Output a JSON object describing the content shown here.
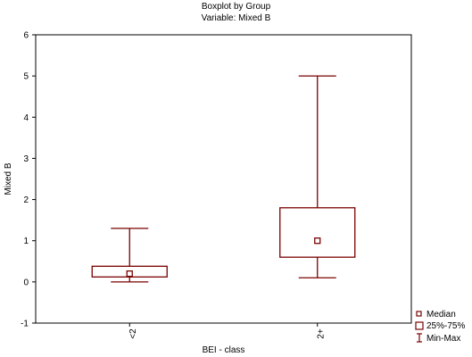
{
  "colors": {
    "box": "#7a0000",
    "axis": "#000000",
    "background": "#ffffff"
  },
  "chart_data": {
    "type": "boxplot",
    "title": "Boxplot by Group",
    "subtitle": "Variable: Mixed B",
    "xlabel": "BEI - class",
    "ylabel": "Mixed B",
    "ylim": [
      -1,
      6
    ],
    "yticks": [
      -1,
      0,
      1,
      2,
      3,
      4,
      5,
      6
    ],
    "categories": [
      "<2",
      "2+"
    ],
    "groups": [
      {
        "category": "<2",
        "min": 0.0,
        "q1": 0.12,
        "median": 0.2,
        "q3": 0.38,
        "max": 1.3
      },
      {
        "category": "2+",
        "min": 0.1,
        "q1": 0.6,
        "median": 1.0,
        "q3": 1.8,
        "max": 5.0
      }
    ],
    "legend": {
      "placement": "bottom-right",
      "entries": [
        "Median",
        "25%-75%",
        "Min-Max"
      ]
    },
    "grid": false
  }
}
